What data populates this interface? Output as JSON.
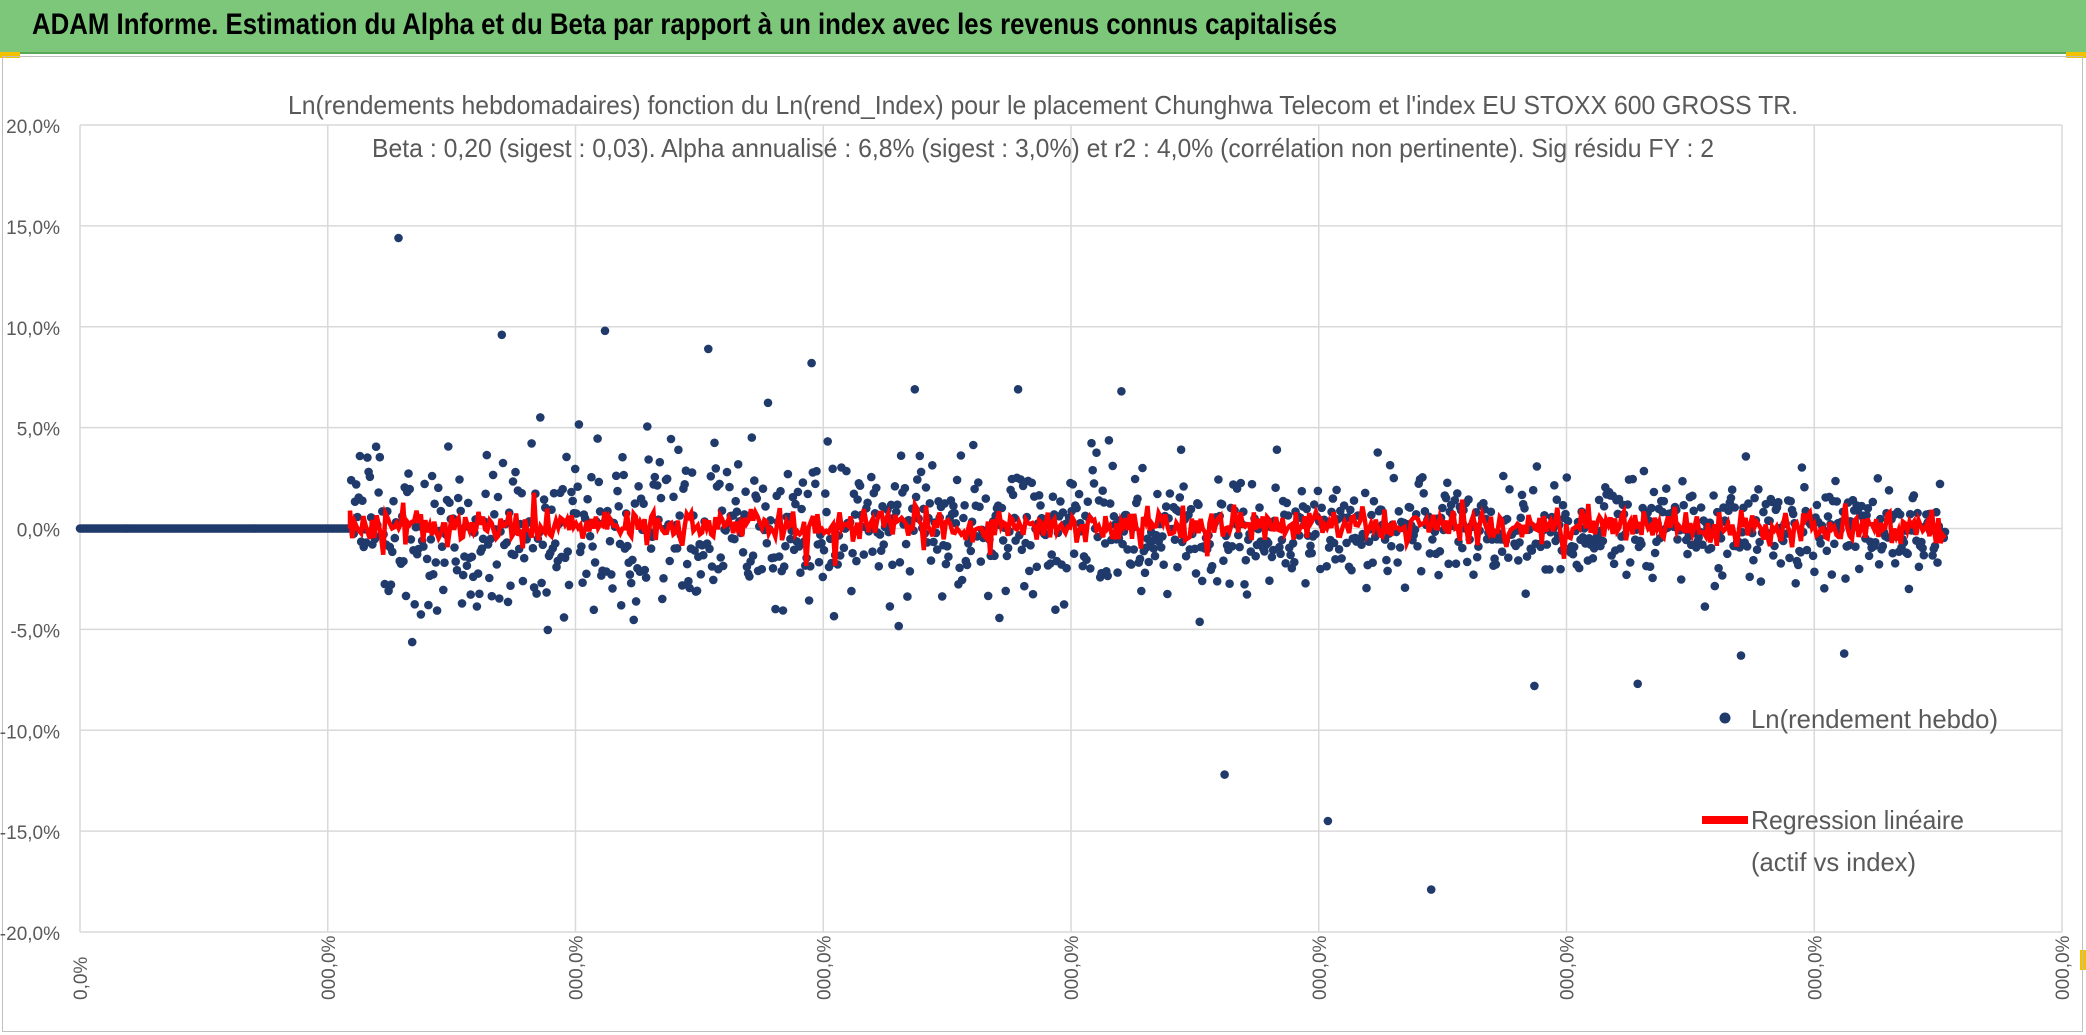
{
  "header": {
    "title": "ADAM Informe. Estimation du Alpha et du Beta par rapport à un index avec les revenus connus capitalisés"
  },
  "colors": {
    "header_bg": "#7dc77a",
    "points": "#1f3a6b",
    "regression": "#ff0000",
    "grid": "#d9d9d9",
    "text": "#595959"
  },
  "chart_data": {
    "type": "scatter",
    "title": "Ln(rendements hebdomadaires) fonction du Ln(rend_Index) pour le placement Chunghwa Telecom  et l'index EU STOXX 600 GROSS TR.",
    "subtitle": "Beta : 0,20 (sigest : 0,03). Alpha annualisé : 6,8% (sigest : 3,0%) et r2 : 4,0% (corrélation non pertinente). Sig résidu FY : 2",
    "ylim": [
      -20,
      20
    ],
    "y_ticks": [
      "20,0%",
      "15,0%",
      "10,0%",
      "5,0%",
      "0,0%",
      "-5,0%",
      "-10,0%",
      "-15,0%",
      "-20,0%"
    ],
    "x_ticks": [
      "0,0%",
      "000,0%",
      "000,0%",
      "000,0%",
      "000,0%",
      "000,0%",
      "000,0%",
      "000,0%",
      "000,0%"
    ],
    "series": [
      {
        "name": "Ln(rendement hebdo)",
        "style": "scatter"
      },
      {
        "name": "Regression linéaire",
        "name_line2": "(actif vs index)",
        "style": "line"
      }
    ],
    "n_points": 1500,
    "beta": 0.2,
    "beta_sigest": 0.03,
    "alpha_annualized_pct": 6.8,
    "alpha_sigest_pct": 3.0,
    "r2_pct": 4.0,
    "outliers_pct": [
      14.4,
      9.6,
      9.8,
      8.9,
      8.2,
      6.9,
      6.9,
      6.8,
      -12.2,
      -14.5,
      -17.9,
      -7.8,
      -7.7,
      -6.3,
      -6.2,
      -6.6,
      -5.6
    ],
    "grid": true,
    "legend_position": "right"
  }
}
